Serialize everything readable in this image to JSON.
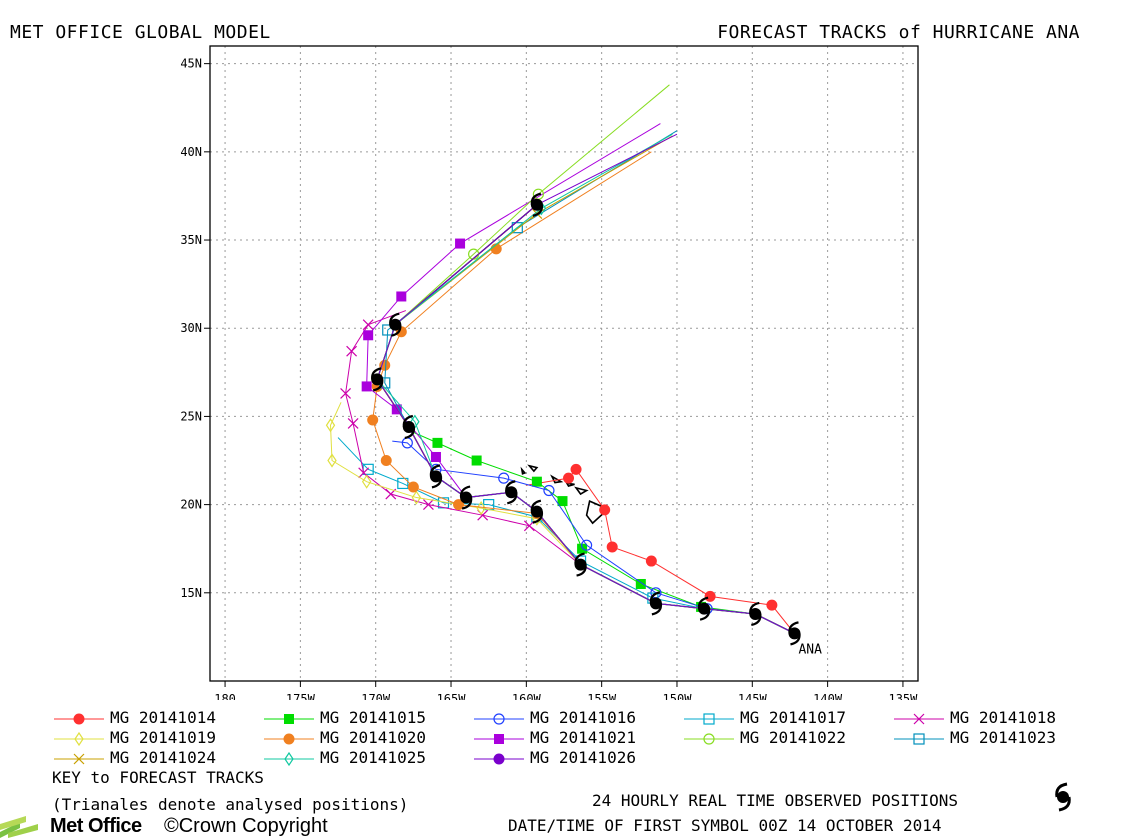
{
  "header": {
    "left_title": "MET OFFICE GLOBAL MODEL",
    "right_title": "FORECAST TRACKS of HURRICANE ANA"
  },
  "chart_data": {
    "type": "line",
    "title": "FORECAST TRACKS of HURRICANE ANA",
    "xlim": [
      -181,
      -134
    ],
    "ylim": [
      10,
      46
    ],
    "x_ticks": [
      {
        "v": -180,
        "label": "180"
      },
      {
        "v": -175,
        "label": "175W"
      },
      {
        "v": -170,
        "label": "170W"
      },
      {
        "v": -165,
        "label": "165W"
      },
      {
        "v": -160,
        "label": "160W"
      },
      {
        "v": -155,
        "label": "155W"
      },
      {
        "v": -150,
        "label": "150W"
      },
      {
        "v": -145,
        "label": "145W"
      },
      {
        "v": -140,
        "label": "140W"
      },
      {
        "v": -135,
        "label": "135W"
      }
    ],
    "y_ticks": [
      {
        "v": 15,
        "label": "15N"
      },
      {
        "v": 20,
        "label": "20N"
      },
      {
        "v": 25,
        "label": "25N"
      },
      {
        "v": 30,
        "label": "30N"
      },
      {
        "v": 35,
        "label": "35N"
      },
      {
        "v": 40,
        "label": "40N"
      },
      {
        "v": 45,
        "label": "45N"
      }
    ],
    "grid": true,
    "storm_label": "ANA",
    "observed": {
      "name": "24 HOURLY REAL TIME OBSERVED POSITIONS",
      "points": [
        [
          -142.2,
          12.7
        ],
        [
          -144.8,
          13.8
        ],
        [
          -148.2,
          14.1
        ],
        [
          -151.4,
          14.4
        ],
        [
          -156.4,
          16.6
        ],
        [
          -159.3,
          19.6
        ],
        [
          -161.0,
          20.7
        ],
        [
          -164.0,
          20.4
        ],
        [
          -166.0,
          21.6
        ],
        [
          -167.8,
          24.4
        ],
        [
          -169.9,
          27.1
        ],
        [
          -168.7,
          30.2
        ],
        [
          -159.3,
          37.0
        ]
      ],
      "icons": [
        [
          -142.2,
          12.7
        ],
        [
          -144.8,
          13.8
        ],
        [
          -148.2,
          14.1
        ],
        [
          -151.4,
          14.4
        ],
        [
          -156.4,
          16.6
        ],
        [
          -159.3,
          19.6
        ],
        [
          -161.0,
          20.7
        ],
        [
          -164.0,
          20.4
        ],
        [
          -166.0,
          21.6
        ],
        [
          -167.8,
          24.4
        ],
        [
          -169.9,
          27.1
        ],
        [
          -168.7,
          30.2
        ],
        [
          -159.3,
          37.0
        ]
      ],
      "triangles": [
        [
          -142.2,
          12.7
        ],
        [
          -144.8,
          13.8
        ],
        [
          -148.2,
          14.1
        ],
        [
          -151.4,
          14.4
        ],
        [
          -156.4,
          16.6
        ],
        [
          -159.3,
          19.6
        ],
        [
          -161.0,
          20.7
        ],
        [
          -164.0,
          20.4
        ],
        [
          -166.0,
          21.6
        ],
        [
          -167.8,
          24.4
        ],
        [
          -169.9,
          27.1
        ],
        [
          -168.7,
          30.2
        ],
        [
          -159.3,
          37.0
        ]
      ]
    },
    "series": [
      {
        "name": "MG 20141014",
        "color": "#ff3030",
        "marker": "circle-filled",
        "points": [
          [
            -142.2,
            12.7
          ],
          [
            -143.7,
            14.3
          ],
          [
            -147.8,
            14.8
          ],
          [
            -151.7,
            16.8
          ],
          [
            -154.3,
            17.6
          ],
          [
            -154.8,
            19.7
          ],
          [
            -156.7,
            22.0
          ],
          [
            -157.2,
            21.5
          ],
          [
            -160.0,
            21.1
          ]
        ]
      },
      {
        "name": "MG 20141015",
        "color": "#00dd00",
        "marker": "square-filled",
        "points": [
          [
            -142.2,
            12.7
          ],
          [
            -144.8,
            13.8
          ],
          [
            -148.4,
            14.2
          ],
          [
            -152.4,
            15.5
          ],
          [
            -156.3,
            17.5
          ],
          [
            -157.6,
            20.2
          ],
          [
            -159.3,
            21.3
          ],
          [
            -163.3,
            22.5
          ],
          [
            -165.9,
            23.5
          ],
          [
            -167.5,
            24.1
          ]
        ]
      },
      {
        "name": "MG 20141016",
        "color": "#2040ff",
        "marker": "circle-open",
        "points": [
          [
            -142.2,
            12.7
          ],
          [
            -144.8,
            13.8
          ],
          [
            -148.0,
            14.1
          ],
          [
            -151.4,
            15.0
          ],
          [
            -156.0,
            17.7
          ],
          [
            -158.5,
            20.8
          ],
          [
            -161.5,
            21.5
          ],
          [
            -166.0,
            22.0
          ],
          [
            -167.9,
            23.5
          ],
          [
            -168.9,
            23.6
          ]
        ]
      },
      {
        "name": "MG 20141017",
        "color": "#00aacc",
        "marker": "square-open",
        "points": [
          [
            -142.2,
            12.7
          ],
          [
            -144.8,
            13.8
          ],
          [
            -148.2,
            14.1
          ],
          [
            -151.6,
            14.7
          ],
          [
            -156.4,
            16.8
          ],
          [
            -159.3,
            19.3
          ],
          [
            -162.5,
            20.0
          ],
          [
            -165.5,
            20.1
          ],
          [
            -168.2,
            21.2
          ],
          [
            -170.5,
            22.0
          ],
          [
            -172.5,
            23.8
          ]
        ]
      },
      {
        "name": "MG 20141018",
        "color": "#cc00aa",
        "marker": "x",
        "points": [
          [
            -142.2,
            12.7
          ],
          [
            -144.8,
            13.8
          ],
          [
            -148.2,
            14.1
          ],
          [
            -151.4,
            14.4
          ],
          [
            -156.4,
            16.6
          ],
          [
            -159.8,
            18.8
          ],
          [
            -162.9,
            19.4
          ],
          [
            -166.5,
            20.0
          ],
          [
            -169.0,
            20.6
          ],
          [
            -170.8,
            21.8
          ],
          [
            -171.5,
            24.6
          ],
          [
            -172.0,
            26.3
          ],
          [
            -171.6,
            28.7
          ],
          [
            -170.5,
            30.2
          ],
          [
            -168.0,
            31.0
          ]
        ]
      },
      {
        "name": "MG 20141019",
        "color": "#e0e040",
        "marker": "diamond-open",
        "points": [
          [
            -142.2,
            12.7
          ],
          [
            -144.8,
            13.8
          ],
          [
            -148.2,
            14.1
          ],
          [
            -151.4,
            14.4
          ],
          [
            -156.4,
            16.6
          ],
          [
            -159.3,
            19.2
          ],
          [
            -163.0,
            19.8
          ],
          [
            -167.3,
            20.4
          ],
          [
            -170.6,
            21.3
          ],
          [
            -172.9,
            22.5
          ],
          [
            -173.0,
            24.5
          ],
          [
            -172.3,
            25.8
          ]
        ]
      },
      {
        "name": "MG 20141020",
        "color": "#f08020",
        "marker": "circle-filled",
        "points": [
          [
            -142.2,
            12.7
          ],
          [
            -144.8,
            13.8
          ],
          [
            -148.2,
            14.1
          ],
          [
            -151.4,
            14.4
          ],
          [
            -156.4,
            16.6
          ],
          [
            -159.3,
            19.5
          ],
          [
            -164.5,
            20.0
          ],
          [
            -167.5,
            21.0
          ],
          [
            -169.3,
            22.5
          ],
          [
            -170.2,
            24.8
          ],
          [
            -169.9,
            26.7
          ],
          [
            -169.4,
            27.9
          ],
          [
            -168.3,
            29.8
          ],
          [
            -162.0,
            34.5
          ],
          [
            -151.7,
            40.0
          ]
        ]
      },
      {
        "name": "MG 20141021",
        "color": "#aa00dd",
        "marker": "square-filled",
        "points": [
          [
            -142.2,
            12.7
          ],
          [
            -144.8,
            13.8
          ],
          [
            -148.2,
            14.1
          ],
          [
            -151.4,
            14.4
          ],
          [
            -156.4,
            16.6
          ],
          [
            -159.3,
            19.6
          ],
          [
            -161.0,
            20.7
          ],
          [
            -164.0,
            20.4
          ],
          [
            -166.0,
            22.7
          ],
          [
            -168.6,
            25.4
          ],
          [
            -170.6,
            26.7
          ],
          [
            -170.5,
            29.6
          ],
          [
            -168.3,
            31.8
          ],
          [
            -164.4,
            34.8
          ],
          [
            -151.1,
            41.6
          ]
        ]
      },
      {
        "name": "MG 20141022",
        "color": "#88dd22",
        "marker": "circle-open",
        "points": [
          [
            -142.2,
            12.7
          ],
          [
            -144.8,
            13.8
          ],
          [
            -148.2,
            14.1
          ],
          [
            -151.4,
            14.4
          ],
          [
            -156.4,
            16.6
          ],
          [
            -159.3,
            19.6
          ],
          [
            -161.0,
            20.7
          ],
          [
            -164.0,
            20.4
          ],
          [
            -166.0,
            21.6
          ],
          [
            -167.8,
            24.4
          ],
          [
            -169.9,
            27.1
          ],
          [
            -168.7,
            30.2
          ],
          [
            -163.5,
            34.2
          ],
          [
            -159.2,
            37.6
          ],
          [
            -150.5,
            43.8
          ]
        ]
      },
      {
        "name": "MG 20141023",
        "color": "#0090bb",
        "marker": "square-open",
        "points": [
          [
            -142.2,
            12.7
          ],
          [
            -144.8,
            13.8
          ],
          [
            -148.2,
            14.1
          ],
          [
            -151.4,
            14.4
          ],
          [
            -156.4,
            16.6
          ],
          [
            -159.3,
            19.6
          ],
          [
            -161.0,
            20.7
          ],
          [
            -164.0,
            20.4
          ],
          [
            -166.0,
            21.6
          ],
          [
            -167.8,
            24.4
          ],
          [
            -169.4,
            26.9
          ],
          [
            -169.2,
            29.9
          ],
          [
            -160.6,
            35.7
          ],
          [
            -150.0,
            41.2
          ]
        ]
      },
      {
        "name": "MG 20141024",
        "color": "#c8a000",
        "marker": "x",
        "points": [
          [
            -142.2,
            12.7
          ],
          [
            -144.8,
            13.8
          ],
          [
            -148.2,
            14.1
          ],
          [
            -151.4,
            14.4
          ],
          [
            -156.4,
            16.6
          ],
          [
            -159.3,
            19.6
          ],
          [
            -161.0,
            20.7
          ],
          [
            -164.0,
            20.4
          ],
          [
            -166.0,
            21.6
          ],
          [
            -167.8,
            24.4
          ],
          [
            -169.9,
            27.1
          ],
          [
            -168.7,
            30.2
          ],
          [
            -159.3,
            36.5
          ],
          [
            -150.3,
            40.9
          ]
        ]
      },
      {
        "name": "MG 20141025",
        "color": "#10c8a0",
        "marker": "diamond-open",
        "points": [
          [
            -142.2,
            12.7
          ],
          [
            -144.8,
            13.8
          ],
          [
            -148.2,
            14.1
          ],
          [
            -151.4,
            14.4
          ],
          [
            -156.4,
            16.6
          ],
          [
            -159.3,
            19.6
          ],
          [
            -161.0,
            20.7
          ],
          [
            -164.0,
            20.4
          ],
          [
            -166.0,
            21.6
          ],
          [
            -167.4,
            24.7
          ],
          [
            -169.9,
            27.1
          ],
          [
            -168.7,
            30.2
          ],
          [
            -159.0,
            36.8
          ],
          [
            -150.3,
            41.0
          ]
        ]
      },
      {
        "name": "MG 20141026",
        "color": "#7a00cc",
        "marker": "circle-filled",
        "points": [
          [
            -142.2,
            12.7
          ],
          [
            -144.8,
            13.8
          ],
          [
            -148.2,
            14.1
          ],
          [
            -151.4,
            14.4
          ],
          [
            -156.4,
            16.6
          ],
          [
            -159.3,
            19.6
          ],
          [
            -161.0,
            20.7
          ],
          [
            -164.0,
            20.4
          ],
          [
            -166.0,
            21.6
          ],
          [
            -167.8,
            24.4
          ],
          [
            -169.9,
            27.1
          ],
          [
            -168.7,
            30.2
          ],
          [
            -159.3,
            37.0
          ],
          [
            -150.0,
            41.0
          ]
        ]
      }
    ]
  },
  "legend": {
    "key_title": "KEY to FORECAST TRACKS",
    "key_note": "(Trianales denote analysed positions)"
  },
  "footer": {
    "observed_label": "24 HOURLY REAL TIME OBSERVED POSITIONS",
    "first_symbol": "DATE/TIME OF FIRST SYMBOL 00Z 14 OCTOBER 2014",
    "brand": "Met Office",
    "copyright": "©Crown Copyright"
  }
}
